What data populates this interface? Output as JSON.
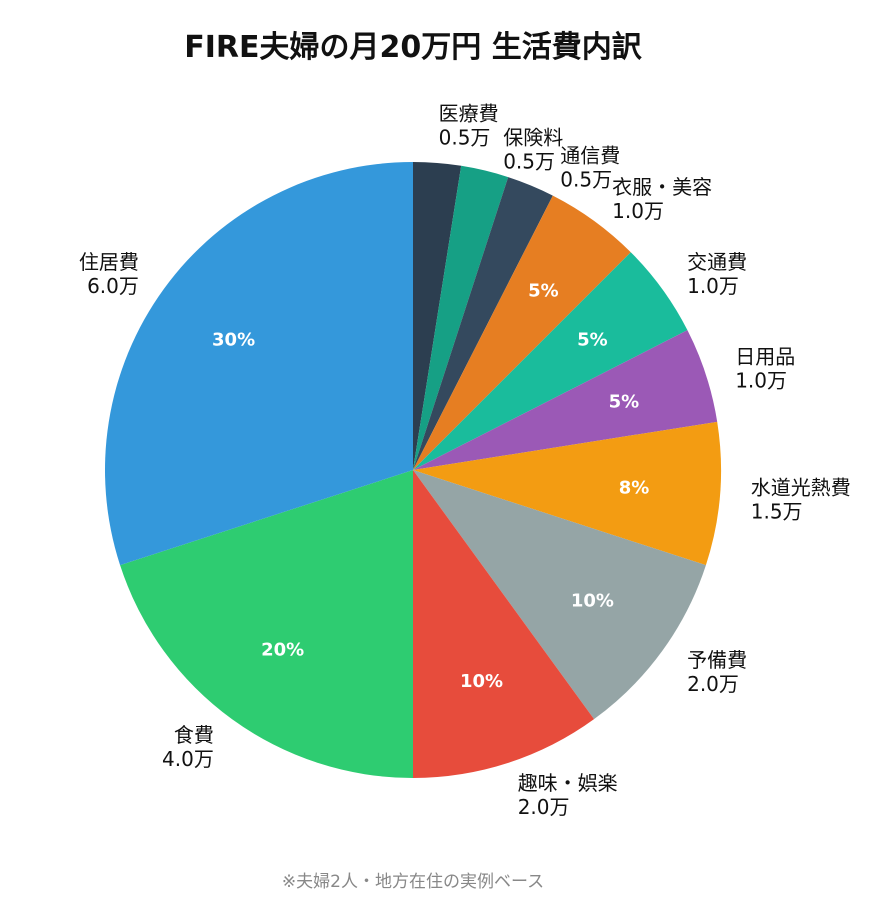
{
  "chart_data": {
    "type": "pie",
    "title": "FIRE夫婦の月20万円 生活費内訳",
    "note": "※夫婦2人・地方在住の実例ベース",
    "unit": "万",
    "slices": [
      {
        "label": "医療費",
        "value": 0.5,
        "value_text": "0.5万",
        "pct_text": "",
        "color": "#2c3e50"
      },
      {
        "label": "保険料",
        "value": 0.5,
        "value_text": "0.5万",
        "pct_text": "",
        "color": "#16a085"
      },
      {
        "label": "通信費",
        "value": 0.5,
        "value_text": "0.5万",
        "pct_text": "",
        "color": "#34495e"
      },
      {
        "label": "衣服・美容",
        "value": 1.0,
        "value_text": "1.0万",
        "pct_text": "5%",
        "color": "#e67e22"
      },
      {
        "label": "交通費",
        "value": 1.0,
        "value_text": "1.0万",
        "pct_text": "5%",
        "color": "#1abc9c"
      },
      {
        "label": "日用品",
        "value": 1.0,
        "value_text": "1.0万",
        "pct_text": "5%",
        "color": "#9b59b6"
      },
      {
        "label": "水道光熱費",
        "value": 1.5,
        "value_text": "1.5万",
        "pct_text": "8%",
        "color": "#f39c12"
      },
      {
        "label": "予備費",
        "value": 2.0,
        "value_text": "2.0万",
        "pct_text": "10%",
        "color": "#95a5a6"
      },
      {
        "label": "趣味・娯楽",
        "value": 2.0,
        "value_text": "2.0万",
        "pct_text": "10%",
        "color": "#e74c3c"
      },
      {
        "label": "食費",
        "value": 4.0,
        "value_text": "4.0万",
        "pct_text": "20%",
        "color": "#2ecc71"
      },
      {
        "label": "住居費",
        "value": 6.0,
        "value_text": "6.0万",
        "pct_text": "30%",
        "color": "#3498db"
      }
    ],
    "start": "top",
    "direction": "clockwise",
    "legend": "none"
  }
}
